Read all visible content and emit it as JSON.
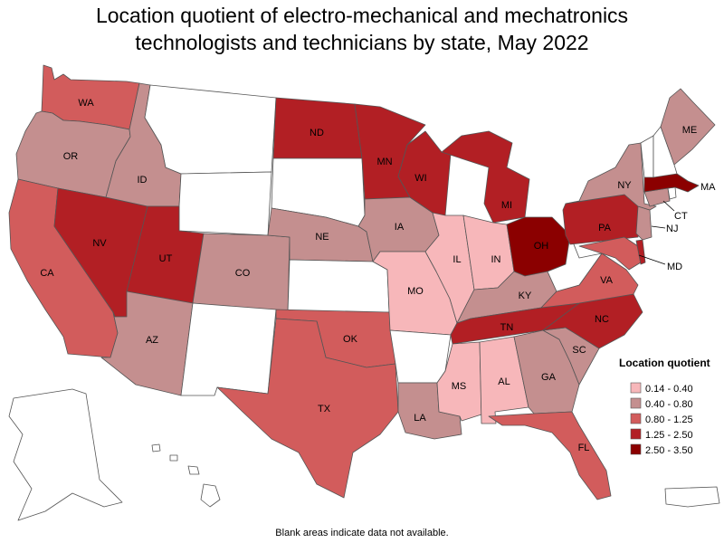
{
  "title": {
    "line1": "Location quotient of electro-mechanical and mechatronics",
    "line2": "technologists and technicians by state, May 2022"
  },
  "legend": {
    "title": "Location quotient",
    "classes": [
      {
        "label": "0.14 - 0.40",
        "color": "#f7b7ba"
      },
      {
        "label": "0.40 - 0.80",
        "color": "#c48f8f"
      },
      {
        "label": "0.80 - 1.25",
        "color": "#d25c5c"
      },
      {
        "label": "1.25 - 2.50",
        "color": "#b21f24"
      },
      {
        "label": "2.50 - 3.50",
        "color": "#8b0000"
      }
    ]
  },
  "no_data_color": "#ffffff",
  "state_class": {
    "WA": 2,
    "OR": 1,
    "CA": 2,
    "NV": 3,
    "ID": 1,
    "MT": null,
    "WY": null,
    "UT": 3,
    "AZ": 1,
    "CO": 1,
    "NM": null,
    "ND": 3,
    "SD": null,
    "NE": 1,
    "KS": null,
    "OK": 2,
    "TX": 2,
    "MN": 3,
    "IA": 1,
    "MO": 0,
    "AR": null,
    "LA": 1,
    "WI": 3,
    "IL": 0,
    "MI": 3,
    "IN": 0,
    "OH": 4,
    "KY": 1,
    "TN": 3,
    "MS": 0,
    "AL": 0,
    "GA": 1,
    "FL": 2,
    "SC": 1,
    "NC": 3,
    "VA": 2,
    "WV": null,
    "PA": 3,
    "NY": 1,
    "ME": 1,
    "VT": null,
    "NH": null,
    "MA": 4,
    "CT": 1,
    "RI": null,
    "NJ": 1,
    "DE": 3,
    "MD": 2,
    "AK": null,
    "HI": null,
    "PR": null
  },
  "labels": {
    "WA": "WA",
    "OR": "OR",
    "CA": "CA",
    "NV": "NV",
    "ID": "ID",
    "UT": "UT",
    "AZ": "AZ",
    "CO": "CO",
    "ND": "ND",
    "NE": "NE",
    "OK": "OK",
    "TX": "TX",
    "MN": "MN",
    "IA": "IA",
    "MO": "MO",
    "LA": "LA",
    "WI": "WI",
    "IL": "IL",
    "MI": "MI",
    "IN": "IN",
    "OH": "OH",
    "KY": "KY",
    "TN": "TN",
    "MS": "MS",
    "AL": "AL",
    "GA": "GA",
    "FL": "FL",
    "SC": "SC",
    "NC": "NC",
    "VA": "VA",
    "PA": "PA",
    "NY": "NY",
    "ME": "ME",
    "MA": "MA",
    "CT": "CT",
    "NJ": "NJ",
    "MD": "MD"
  },
  "footnote": "Blank areas indicate data not available."
}
